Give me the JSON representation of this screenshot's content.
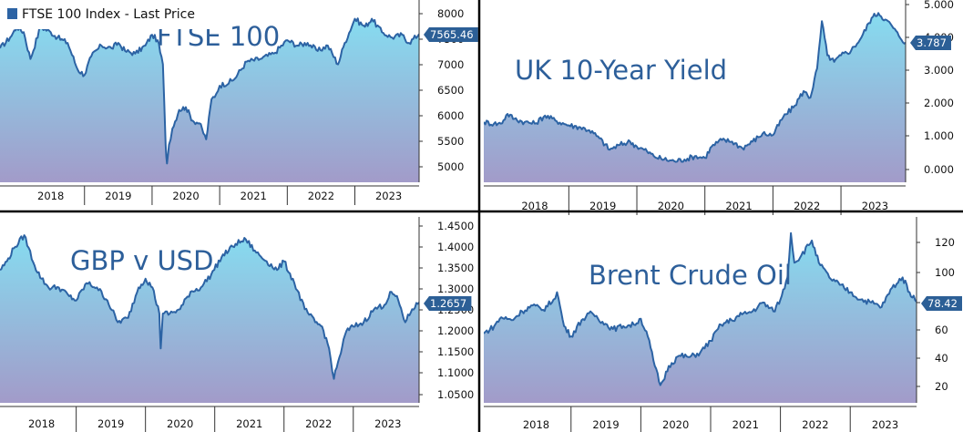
{
  "legend": {
    "label": "FTSE 100 Index - Last Price"
  },
  "colors": {
    "line": "#2c63a4",
    "fill_top": "#86dcf0",
    "fill_bottom": "#a29bc9",
    "label_bg": "#2c5f96",
    "title": "#2d5f9a"
  },
  "chart_data": [
    {
      "type": "area",
      "title": "FTSE 100",
      "xlabel": "",
      "ylabel": "",
      "x_ticks": [
        "2018",
        "2019",
        "2020",
        "2021",
        "2022",
        "2023"
      ],
      "x_range": [
        2017.75,
        2023.95
      ],
      "y_ticks": [
        "8000",
        "7500",
        "7000",
        "6500",
        "6000",
        "5500",
        "5000"
      ],
      "ylim": [
        4800,
        8200
      ],
      "last_value": "7565.46",
      "series": [
        {
          "x": [
            2017.75,
            2017.9,
            2018.0,
            2018.1,
            2018.2,
            2018.35,
            2018.5,
            2018.6,
            2018.75,
            2018.9,
            2019.0,
            2019.1,
            2019.25,
            2019.4,
            2019.5,
            2019.6,
            2019.75,
            2019.9,
            2020.0,
            2020.08,
            2020.16,
            2020.2,
            2020.22,
            2020.25,
            2020.3,
            2020.4,
            2020.5,
            2020.6,
            2020.7,
            2020.8,
            2020.88,
            2020.95,
            2021.0,
            2021.2,
            2021.4,
            2021.6,
            2021.8,
            2022.0,
            2022.15,
            2022.3,
            2022.45,
            2022.6,
            2022.75,
            2022.85,
            2023.0,
            2023.15,
            2023.25,
            2023.4,
            2023.55,
            2023.7,
            2023.8,
            2023.95
          ],
          "values": [
            7300,
            7500,
            7700,
            7600,
            7100,
            7700,
            7600,
            7500,
            7400,
            6900,
            6800,
            7150,
            7350,
            7300,
            7400,
            7250,
            7200,
            7350,
            7550,
            7450,
            7000,
            5500,
            5150,
            5500,
            5800,
            6150,
            6200,
            5950,
            5900,
            5600,
            6350,
            6450,
            6600,
            6700,
            7050,
            7100,
            7200,
            7450,
            7350,
            7400,
            7250,
            7350,
            7000,
            7400,
            7850,
            7700,
            7850,
            7600,
            7500,
            7550,
            7400,
            7565
          ]
        }
      ]
    },
    {
      "type": "area",
      "title": "UK 10-Year Yield",
      "xlabel": "",
      "ylabel": "",
      "x_ticks": [
        "2018",
        "2019",
        "2020",
        "2021",
        "2022",
        "2023"
      ],
      "x_range": [
        2017.75,
        2023.95
      ],
      "y_ticks": [
        "5.000",
        "4.000",
        "3.000",
        "2.000",
        "1.000",
        "0.000"
      ],
      "ylim": [
        -0.5,
        5.1
      ],
      "last_value": "3.787",
      "series": [
        {
          "x": [
            2017.75,
            2017.9,
            2018.0,
            2018.1,
            2018.2,
            2018.35,
            2018.5,
            2018.65,
            2018.8,
            2019.0,
            2019.15,
            2019.3,
            2019.45,
            2019.6,
            2019.75,
            2019.9,
            2020.0,
            2020.15,
            2020.25,
            2020.4,
            2020.55,
            2020.7,
            2020.85,
            2021.0,
            2021.1,
            2021.25,
            2021.4,
            2021.55,
            2021.7,
            2021.85,
            2022.0,
            2022.15,
            2022.3,
            2022.45,
            2022.55,
            2022.65,
            2022.72,
            2022.8,
            2022.9,
            2023.0,
            2023.15,
            2023.3,
            2023.45,
            2023.55,
            2023.65,
            2023.75,
            2023.85,
            2023.95
          ],
          "values": [
            1.35,
            1.3,
            1.3,
            1.6,
            1.45,
            1.35,
            1.3,
            1.55,
            1.4,
            1.25,
            1.2,
            1.1,
            0.85,
            0.5,
            0.65,
            0.75,
            0.6,
            0.45,
            0.3,
            0.2,
            0.15,
            0.2,
            0.3,
            0.25,
            0.6,
            0.8,
            0.75,
            0.55,
            0.75,
            1.0,
            0.95,
            1.5,
            1.8,
            2.3,
            2.1,
            3.0,
            4.45,
            3.4,
            3.2,
            3.4,
            3.55,
            3.95,
            4.55,
            4.7,
            4.5,
            4.3,
            4.0,
            3.787
          ]
        }
      ]
    },
    {
      "type": "area",
      "title": "GBP v USD",
      "xlabel": "",
      "ylabel": "",
      "x_ticks": [
        "2018",
        "2019",
        "2020",
        "2021",
        "2022",
        "2023"
      ],
      "x_range": [
        2017.9,
        2023.95
      ],
      "y_ticks": [
        "1.4500",
        "1.4000",
        "1.3500",
        "1.3000",
        "1.2500",
        "1.2000",
        "1.1500",
        "1.1000",
        "1.0500"
      ],
      "ylim": [
        1.035,
        1.462
      ],
      "last_value": "1.2657",
      "series": [
        {
          "x": [
            2017.9,
            2018.0,
            2018.1,
            2018.25,
            2018.4,
            2018.5,
            2018.6,
            2018.75,
            2018.9,
            2019.0,
            2019.15,
            2019.3,
            2019.45,
            2019.6,
            2019.75,
            2019.9,
            2020.0,
            2020.1,
            2020.2,
            2020.22,
            2020.25,
            2020.35,
            2020.5,
            2020.65,
            2020.8,
            2020.95,
            2021.1,
            2021.3,
            2021.45,
            2021.6,
            2021.75,
            2021.9,
            2022.0,
            2022.15,
            2022.3,
            2022.45,
            2022.55,
            2022.65,
            2022.72,
            2022.8,
            2022.9,
            2023.0,
            2023.15,
            2023.3,
            2023.45,
            2023.55,
            2023.65,
            2023.75,
            2023.85,
            2023.95
          ],
          "values": [
            1.34,
            1.36,
            1.39,
            1.42,
            1.35,
            1.32,
            1.3,
            1.3,
            1.28,
            1.27,
            1.31,
            1.3,
            1.27,
            1.22,
            1.23,
            1.3,
            1.32,
            1.3,
            1.24,
            1.16,
            1.24,
            1.24,
            1.25,
            1.29,
            1.3,
            1.33,
            1.37,
            1.4,
            1.41,
            1.38,
            1.36,
            1.34,
            1.36,
            1.31,
            1.25,
            1.22,
            1.21,
            1.16,
            1.09,
            1.14,
            1.2,
            1.21,
            1.22,
            1.25,
            1.26,
            1.29,
            1.27,
            1.22,
            1.25,
            1.2657
          ]
        }
      ]
    },
    {
      "type": "area",
      "title": "Brent Crude Oil",
      "xlabel": "",
      "ylabel": "",
      "x_ticks": [
        "2018",
        "2019",
        "2020",
        "2021",
        "2022",
        "2023"
      ],
      "x_range": [
        2017.75,
        2023.95
      ],
      "y_ticks": [
        "120",
        "100",
        "80",
        "60",
        "40",
        "20"
      ],
      "ylim": [
        10,
        136
      ],
      "last_value": "78.42",
      "series": [
        {
          "x": [
            2017.75,
            2017.9,
            2018.0,
            2018.15,
            2018.3,
            2018.45,
            2018.6,
            2018.75,
            2018.8,
            2018.9,
            2019.0,
            2019.15,
            2019.3,
            2019.45,
            2019.6,
            2019.75,
            2019.9,
            2020.0,
            2020.1,
            2020.2,
            2020.28,
            2020.32,
            2020.4,
            2020.55,
            2020.7,
            2020.85,
            2021.0,
            2021.15,
            2021.3,
            2021.45,
            2021.6,
            2021.75,
            2021.9,
            2022.0,
            2022.1,
            2022.15,
            2022.2,
            2022.3,
            2022.45,
            2022.55,
            2022.7,
            2022.85,
            2023.0,
            2023.15,
            2023.3,
            2023.45,
            2023.6,
            2023.75,
            2023.85,
            2023.95
          ],
          "values": [
            57,
            62,
            68,
            66,
            72,
            76,
            73,
            80,
            85,
            62,
            55,
            66,
            71,
            65,
            60,
            62,
            63,
            67,
            55,
            35,
            22,
            25,
            35,
            42,
            41,
            44,
            52,
            63,
            66,
            70,
            72,
            78,
            72,
            80,
            95,
            125,
            105,
            110,
            120,
            105,
            95,
            90,
            85,
            80,
            78,
            75,
            88,
            95,
            85,
            78.42
          ]
        }
      ]
    }
  ]
}
